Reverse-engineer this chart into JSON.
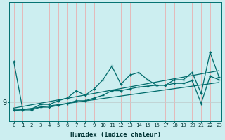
{
  "xlabel": "Humidex (Indice chaleur)",
  "background_color": "#cceef0",
  "line_color": "#006b6b",
  "x_ticks": [
    0,
    1,
    2,
    3,
    4,
    5,
    6,
    7,
    8,
    9,
    10,
    11,
    12,
    13,
    14,
    15,
    16,
    17,
    18,
    19,
    20,
    21,
    22,
    23
  ],
  "ytick_val": 9,
  "ytick_pos": 9,
  "ymin": 7.0,
  "ymax": 20.0,
  "series1_x": [
    0,
    1,
    2,
    3,
    4,
    5,
    6,
    7,
    8,
    9,
    10,
    11,
    12,
    13,
    14,
    15,
    16,
    17,
    18,
    19,
    20,
    21,
    22,
    23
  ],
  "series1_y": [
    13.5,
    8.3,
    8.3,
    8.8,
    8.8,
    9.2,
    9.5,
    10.3,
    9.8,
    10.5,
    11.5,
    13.0,
    11.0,
    12.0,
    12.3,
    11.5,
    10.9,
    10.9,
    11.5,
    11.5,
    12.3,
    10.0,
    14.5,
    11.8
  ],
  "series2_x": [
    0,
    1,
    2,
    3,
    4,
    5,
    6,
    7,
    8,
    9,
    10,
    11,
    12,
    13,
    14,
    15,
    16,
    17,
    18,
    19,
    20,
    21,
    22,
    23
  ],
  "series2_y": [
    8.2,
    8.2,
    8.2,
    8.5,
    8.5,
    8.7,
    8.9,
    9.2,
    9.2,
    9.5,
    9.8,
    10.3,
    10.3,
    10.5,
    10.7,
    10.8,
    10.9,
    10.9,
    11.1,
    11.1,
    11.4,
    8.9,
    11.9,
    11.5
  ],
  "trend1_x": [
    0,
    23
  ],
  "trend1_y": [
    8.4,
    12.5
  ],
  "trend2_x": [
    0,
    23
  ],
  "trend2_y": [
    8.1,
    11.2
  ],
  "vgrid_color": "#e8b0b0",
  "hgrid_color": "#c0d0d0"
}
